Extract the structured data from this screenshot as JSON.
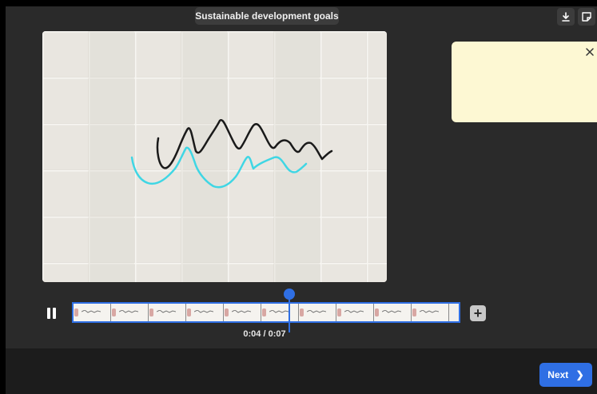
{
  "header": {
    "title": "Sustainable development goals",
    "download_icon": "download-icon",
    "sticky_note_icon": "sticky-note-icon"
  },
  "note": {
    "close_icon": "close-icon",
    "background": "#fdf8d3"
  },
  "player": {
    "state": "playing",
    "pause_icon": "pause-icon",
    "time_display": "0:04 / 0:07",
    "progress": 0.53,
    "add_icon": "plus-icon"
  },
  "footer": {
    "next_label": "Next",
    "next_icon": "chevron-right-icon"
  },
  "colors": {
    "accent": "#2f6fe4",
    "background": "#2a2a2a",
    "footer": "#1c1c1c",
    "ink_black": "#1a1a1a",
    "ink_cyan": "#3fd6e4"
  }
}
